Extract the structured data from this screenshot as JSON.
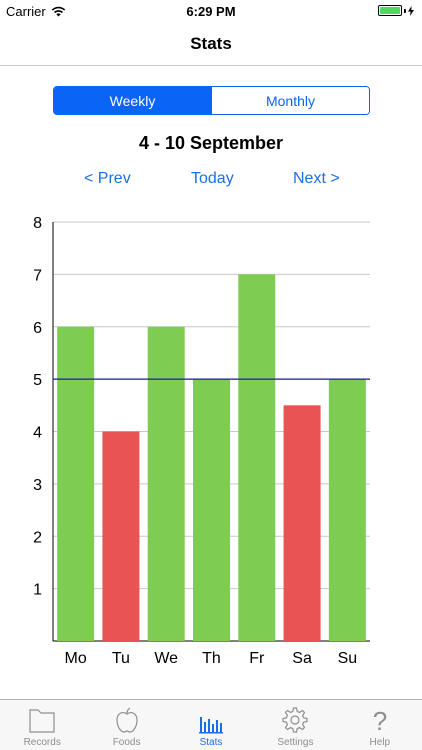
{
  "status_bar": {
    "carrier": "Carrier",
    "time": "6:29 PM"
  },
  "nav": {
    "title": "Stats"
  },
  "segmented": {
    "options": [
      "Weekly",
      "Monthly"
    ],
    "selected": "Weekly"
  },
  "period": {
    "title": "4 - 10 September",
    "prev_label": "< Prev",
    "today_label": "Today",
    "next_label": "Next >"
  },
  "chart_data": {
    "type": "bar",
    "categories": [
      "Mo",
      "Tu",
      "We",
      "Th",
      "Fr",
      "Sa",
      "Su"
    ],
    "values": [
      6,
      4,
      6,
      5,
      7,
      4.5,
      5
    ],
    "bar_colors": [
      "#7ecd52",
      "#ea5353",
      "#7ecd52",
      "#7ecd52",
      "#7ecd52",
      "#ea5353",
      "#7ecd52"
    ],
    "ylim": [
      0,
      8
    ],
    "yticks": [
      1,
      2,
      3,
      4,
      5,
      6,
      7,
      8
    ],
    "target_line": 5,
    "target_line_color": "#1a1aa6",
    "grid": true,
    "title": "",
    "xlabel": "",
    "ylabel": ""
  },
  "colors": {
    "accent": "#0a64f5",
    "good": "#7ecd52",
    "bad": "#ea5353"
  },
  "tab_bar": {
    "tabs": [
      {
        "label": "Records",
        "icon": "folder-icon"
      },
      {
        "label": "Foods",
        "icon": "apple-icon"
      },
      {
        "label": "Stats",
        "icon": "bar-chart-icon"
      },
      {
        "label": "Settings",
        "icon": "gear-icon"
      },
      {
        "label": "Help",
        "icon": "question-mark-icon"
      }
    ],
    "active": "Stats"
  }
}
